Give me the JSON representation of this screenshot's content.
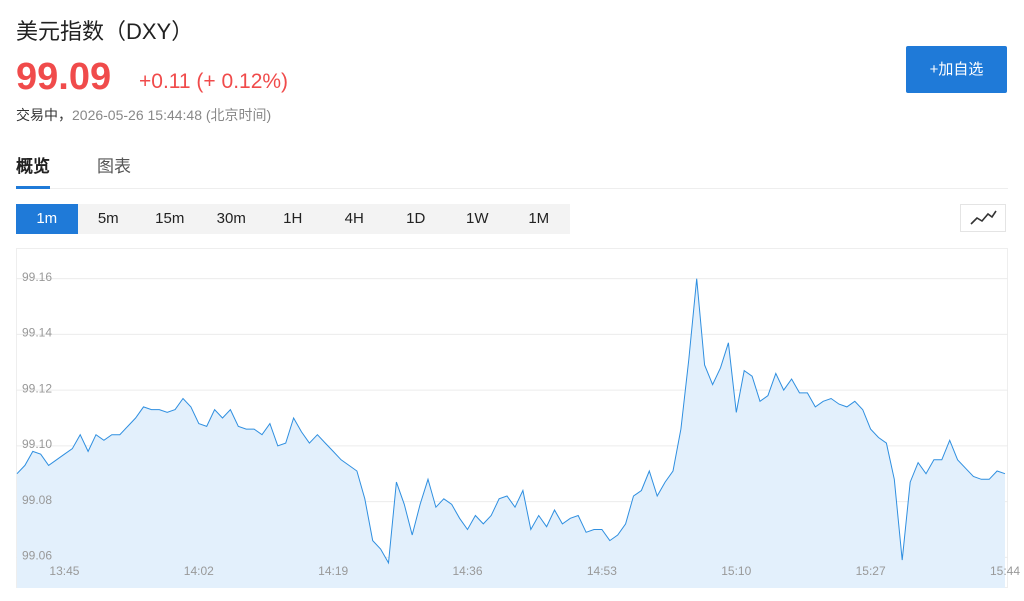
{
  "header": {
    "title": "美元指数（DXY）",
    "price": "99.09",
    "change": "+0.11",
    "change_pct": "(+ 0.12%)",
    "status": "交易中，",
    "timestamp": "2026-05-26 15:44:48 (北京时间)",
    "add_button": "+加自选"
  },
  "tabs": [
    "概览",
    "图表"
  ],
  "periods": [
    "1m",
    "5m",
    "15m",
    "30m",
    "1H",
    "4H",
    "1D",
    "1W",
    "1M"
  ],
  "chart_data": {
    "type": "area",
    "color": "#2f8fe0",
    "fill": "#e3f0fc",
    "grid": true,
    "x": [
      "13:39",
      "13:40",
      "13:41",
      "13:42",
      "13:43",
      "13:44",
      "13:45",
      "13:46",
      "13:47",
      "13:48",
      "13:49",
      "13:50",
      "13:51",
      "13:52",
      "13:53",
      "13:54",
      "13:55",
      "13:56",
      "13:57",
      "13:58",
      "13:59",
      "14:00",
      "14:01",
      "14:02",
      "14:03",
      "14:04",
      "14:05",
      "14:06",
      "14:07",
      "14:08",
      "14:09",
      "14:10",
      "14:11",
      "14:12",
      "14:13",
      "14:14",
      "14:15",
      "14:16",
      "14:17",
      "14:18",
      "14:19",
      "14:20",
      "14:21",
      "14:22",
      "14:23",
      "14:24",
      "14:25",
      "14:26",
      "14:27",
      "14:28",
      "14:29",
      "14:30",
      "14:31",
      "14:32",
      "14:33",
      "14:34",
      "14:35",
      "14:36",
      "14:37",
      "14:38",
      "14:39",
      "14:40",
      "14:41",
      "14:42",
      "14:43",
      "14:44",
      "14:45",
      "14:46",
      "14:47",
      "14:48",
      "14:49",
      "14:50",
      "14:51",
      "14:52",
      "14:53",
      "14:54",
      "14:55",
      "14:56",
      "14:57",
      "14:58",
      "14:59",
      "15:00",
      "15:01",
      "15:02",
      "15:03",
      "15:04",
      "15:05",
      "15:06",
      "15:07",
      "15:08",
      "15:09",
      "15:10",
      "15:11",
      "15:12",
      "15:13",
      "15:14",
      "15:15",
      "15:16",
      "15:17",
      "15:18",
      "15:19",
      "15:20",
      "15:21",
      "15:22",
      "15:23",
      "15:24",
      "15:25",
      "15:26",
      "15:27",
      "15:28",
      "15:29",
      "15:30",
      "15:31",
      "15:32",
      "15:33",
      "15:34",
      "15:35",
      "15:36",
      "15:37",
      "15:38",
      "15:39",
      "15:40",
      "15:41",
      "15:42",
      "15:43",
      "15:44"
    ],
    "values": [
      99.09,
      99.093,
      99.098,
      99.097,
      99.093,
      99.095,
      99.097,
      99.099,
      99.104,
      99.098,
      99.104,
      99.102,
      99.104,
      99.104,
      99.107,
      99.11,
      99.114,
      99.113,
      99.113,
      99.112,
      99.113,
      99.117,
      99.114,
      99.108,
      99.107,
      99.113,
      99.11,
      99.113,
      99.107,
      99.106,
      99.106,
      99.104,
      99.108,
      99.1,
      99.101,
      99.11,
      99.105,
      99.101,
      99.104,
      99.101,
      99.098,
      99.095,
      99.093,
      99.091,
      99.081,
      99.066,
      99.063,
      99.058,
      99.087,
      99.079,
      99.068,
      99.079,
      99.088,
      99.078,
      99.081,
      99.079,
      99.074,
      99.07,
      99.075,
      99.072,
      99.075,
      99.081,
      99.082,
      99.078,
      99.084,
      99.07,
      99.075,
      99.071,
      99.077,
      99.072,
      99.074,
      99.075,
      99.069,
      99.07,
      99.07,
      99.066,
      99.068,
      99.072,
      99.082,
      99.084,
      99.091,
      99.082,
      99.087,
      99.091,
      99.106,
      99.131,
      99.16,
      99.129,
      99.122,
      99.128,
      99.137,
      99.112,
      99.127,
      99.125,
      99.116,
      99.118,
      99.126,
      99.12,
      99.124,
      99.119,
      99.119,
      99.114,
      99.116,
      99.117,
      99.115,
      99.114,
      99.116,
      99.113,
      99.106,
      99.103,
      99.101,
      99.088,
      99.059,
      99.087,
      99.094,
      99.09,
      99.095,
      99.095,
      99.102,
      99.095,
      99.092,
      99.089,
      99.088,
      99.088,
      99.091,
      99.09
    ],
    "ylim": [
      99.049,
      99.171
    ],
    "yticks": [
      99.06,
      99.08,
      {
        "value": 99.1,
        "label": "99.10"
      },
      99.12,
      99.14,
      99.16
    ],
    "xticks": [
      "13:45",
      "14:02",
      "14:19",
      "14:36",
      "14:53",
      "15:10",
      "15:27",
      "15:44"
    ]
  }
}
